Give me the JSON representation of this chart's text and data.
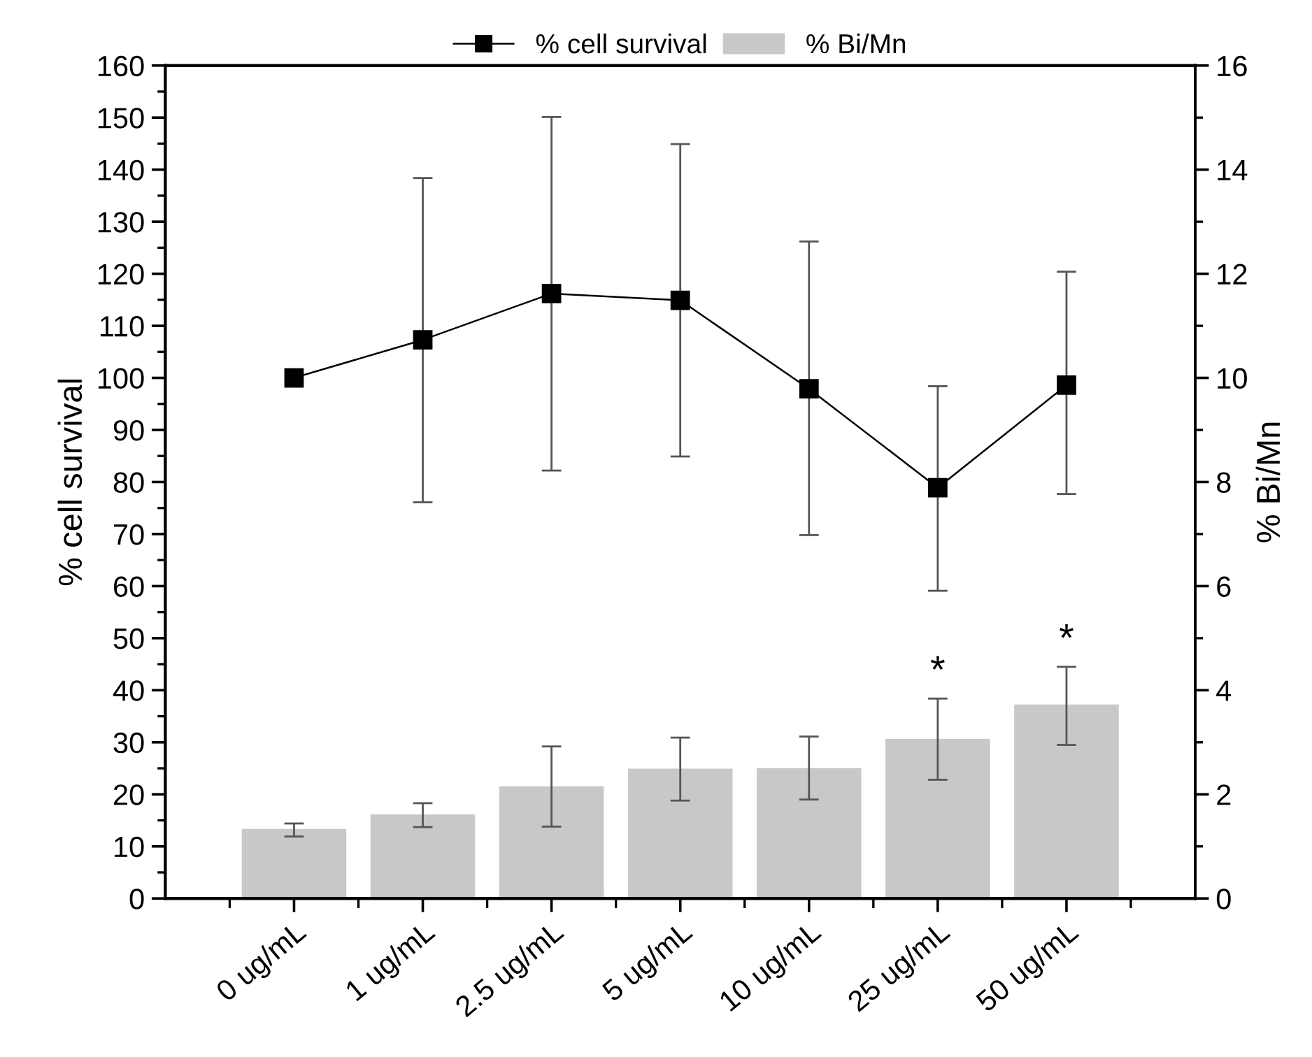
{
  "chart_data": {
    "type": "bar",
    "ylabel": "% cell survival",
    "y2label": "% Bi/Mn",
    "categories": [
      "0 ug/mL",
      "1 ug/mL",
      "2.5 ug/mL",
      "5 ug/mL",
      "10 ug/mL",
      "25 ug/mL",
      "50 ug/mL"
    ],
    "series": [
      {
        "name": "% cell survival",
        "type": "line",
        "color": "#000000",
        "marker": "square",
        "line_style": "solid",
        "values": [
          100,
          107.3,
          116.2,
          114.9,
          97.9,
          78.9,
          98.6
        ],
        "errors": [
          null,
          [
            76.1,
            138.4
          ],
          [
            82.2,
            150.1
          ],
          [
            84.9,
            144.9
          ],
          [
            69.8,
            126.2
          ],
          [
            59.1,
            98.4
          ],
          [
            77.7,
            120.4
          ]
        ]
      },
      {
        "name": "% Bi/Mn",
        "axis": "y2",
        "color": "#c8c8c8",
        "values": [
          1.32,
          1.6,
          2.14,
          2.48,
          2.49,
          3.05,
          3.71
        ],
        "errors": [
          [
            1.19,
            1.44
          ],
          [
            1.37,
            1.83
          ],
          [
            1.38,
            2.92
          ],
          [
            1.88,
            3.09
          ],
          [
            1.9,
            3.11
          ],
          [
            2.28,
            3.84
          ],
          [
            2.95,
            4.45
          ]
        ]
      }
    ],
    "ylim": [
      0,
      160
    ],
    "yticks": [
      0,
      10,
      20,
      30,
      40,
      50,
      60,
      70,
      80,
      90,
      100,
      110,
      120,
      130,
      140,
      150,
      160
    ],
    "y2lim": [
      0,
      16
    ],
    "y2ticks": [
      0,
      2,
      4,
      6,
      8,
      10,
      12,
      14,
      16
    ],
    "annotations": [
      "*",
      "*"
    ],
    "legend": "top",
    "grid": false
  }
}
